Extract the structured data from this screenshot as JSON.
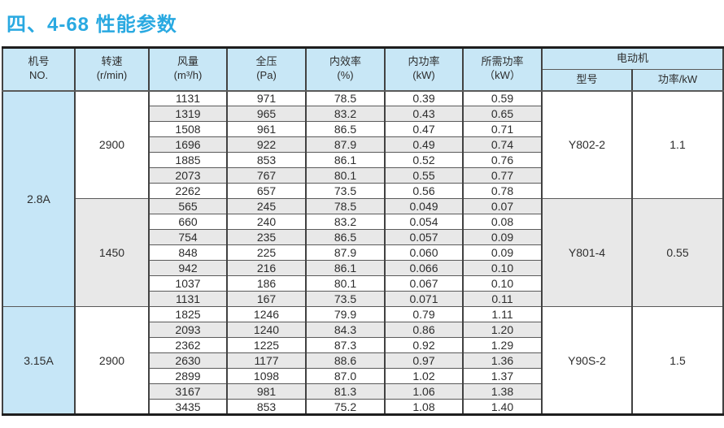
{
  "page": {
    "title": "四、4-68 性能参数"
  },
  "colors": {
    "title_accent": "#29a9e1",
    "header_bg": "#c8e7f6",
    "machine_col_bg": "#c6e6f7",
    "row_alt_bg": "#e8e8e8",
    "border_dark": "#1e1e1e"
  },
  "table": {
    "headers": [
      {
        "line1": "机号",
        "line2": "NO."
      },
      {
        "line1": "转速",
        "line2": "(r/min)"
      },
      {
        "line1": "风量",
        "line2": "(m³/h)"
      },
      {
        "line1": "全压",
        "line2": "(Pa)"
      },
      {
        "line1": "内效率",
        "line2": "(%)"
      },
      {
        "line1": "内功率",
        "line2": "(kW)"
      },
      {
        "line1": "所需功率",
        "line2": "（kW）"
      }
    ],
    "motor_header": "电动机",
    "motor_sub": [
      "型号",
      "功率/kW"
    ],
    "groups": [
      {
        "machine_no": "2.8A",
        "sections": [
          {
            "speed": "2900",
            "motor_model": "Y802-2",
            "motor_power": "1.1",
            "rows": [
              [
                "1131",
                "971",
                "78.5",
                "0.39",
                "0.59"
              ],
              [
                "1319",
                "965",
                "83.2",
                "0.43",
                "0.65"
              ],
              [
                "1508",
                "961",
                "86.5",
                "0.47",
                "0.71"
              ],
              [
                "1696",
                "922",
                "87.9",
                "0.49",
                "0.74"
              ],
              [
                "1885",
                "853",
                "86.1",
                "0.52",
                "0.76"
              ],
              [
                "2073",
                "767",
                "80.1",
                "0.55",
                "0.77"
              ],
              [
                "2262",
                "657",
                "73.5",
                "0.56",
                "0.78"
              ]
            ]
          },
          {
            "speed": "1450",
            "motor_model": "Y801-4",
            "motor_power": "0.55",
            "rows": [
              [
                "565",
                "245",
                "78.5",
                "0.049",
                "0.07"
              ],
              [
                "660",
                "240",
                "83.2",
                "0.054",
                "0.08"
              ],
              [
                "754",
                "235",
                "86.5",
                "0.057",
                "0.09"
              ],
              [
                "848",
                "225",
                "87.9",
                "0.060",
                "0.09"
              ],
              [
                "942",
                "216",
                "86.1",
                "0.066",
                "0.10"
              ],
              [
                "1037",
                "186",
                "80.1",
                "0.067",
                "0.10"
              ],
              [
                "1131",
                "167",
                "73.5",
                "0.071",
                "0.11"
              ]
            ]
          }
        ]
      },
      {
        "machine_no": "3.15A",
        "sections": [
          {
            "speed": "2900",
            "motor_model": "Y90S-2",
            "motor_power": "1.5",
            "rows": [
              [
                "1825",
                "1246",
                "79.9",
                "0.79",
                "1.11"
              ],
              [
                "2093",
                "1240",
                "84.3",
                "0.86",
                "1.20"
              ],
              [
                "2362",
                "1225",
                "87.3",
                "0.92",
                "1.29"
              ],
              [
                "2630",
                "1177",
                "88.6",
                "0.97",
                "1.36"
              ],
              [
                "2899",
                "1098",
                "87.0",
                "1.02",
                "1.37"
              ],
              [
                "3167",
                "981",
                "81.3",
                "1.06",
                "1.38"
              ],
              [
                "3435",
                "853",
                "75.2",
                "1.08",
                "1.40"
              ]
            ]
          }
        ]
      }
    ]
  }
}
